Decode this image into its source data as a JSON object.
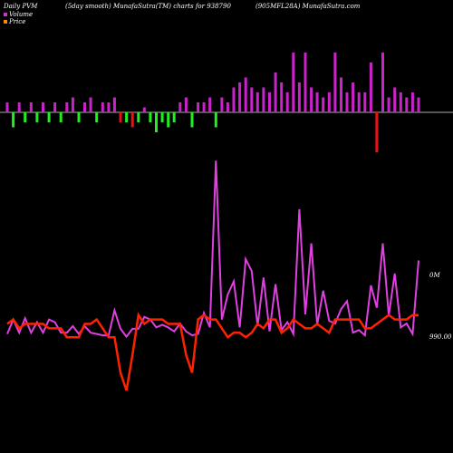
{
  "header": {
    "left": "Daily PVM",
    "middle": "(5day smooth) MunafaSutra(TM) charts for 938790",
    "right": "(905MFL28A) MunafaSutra.com"
  },
  "legend": [
    {
      "label": "Volume",
      "color": "#cc33cc"
    },
    {
      "label": "Price",
      "color": "#ff8800"
    }
  ],
  "labels": {
    "high": "0M",
    "price": "990.00"
  },
  "colors": {
    "background": "#000000",
    "pvm_line": "#e040e0",
    "price_line": "#ff2200",
    "up": "#cc22cc",
    "down_green": "#22ee22",
    "down_red": "#ee1111",
    "baseline": "#aaaaaa"
  },
  "chart_data": {
    "type": "bar",
    "series": [
      {
        "name": "Volume",
        "values": [
          2,
          3,
          2,
          2,
          2,
          2,
          2,
          2,
          2,
          2,
          2,
          3,
          2,
          2,
          3,
          2,
          2,
          2,
          3,
          2,
          2,
          3,
          2,
          1,
          2,
          4,
          2,
          3,
          2,
          2,
          3,
          3,
          2,
          2,
          3,
          3,
          3,
          2,
          5,
          6,
          7,
          5,
          4,
          5,
          4,
          8,
          6,
          4,
          12,
          6,
          12,
          5,
          4,
          3,
          4,
          12,
          7,
          4,
          6,
          4,
          4,
          10,
          8,
          12,
          3,
          5,
          4,
          3,
          4,
          3
        ],
        "colors": [
          "m",
          "g",
          "m",
          "g",
          "m",
          "g",
          "m",
          "g",
          "m",
          "g",
          "m",
          "m",
          "g",
          "m",
          "m",
          "g",
          "m",
          "m",
          "m",
          "r",
          "g",
          "r",
          "g",
          "m",
          "g",
          "g",
          "g",
          "g",
          "g",
          "m",
          "m",
          "g",
          "m",
          "m",
          "m",
          "g",
          "m",
          "m",
          "m",
          "m",
          "m",
          "m",
          "m",
          "m",
          "m",
          "m",
          "m",
          "m",
          "m",
          "m",
          "m",
          "m",
          "m",
          "m",
          "m",
          "m",
          "m",
          "m",
          "m",
          "m",
          "m",
          "m",
          "r",
          "m",
          "m",
          "m",
          "m",
          "m",
          "m",
          "m"
        ]
      },
      {
        "name": "PVM",
        "values": [
          3,
          14,
          4,
          15,
          4,
          12,
          4,
          14,
          12,
          4,
          4,
          9,
          3,
          9,
          4,
          3,
          2,
          2,
          21,
          7,
          1,
          7,
          7,
          16,
          14,
          8,
          10,
          8,
          5,
          11,
          5,
          2,
          3,
          19,
          8,
          135,
          14,
          33,
          43,
          8,
          60,
          51,
          9,
          46,
          5,
          41,
          6,
          12,
          3,
          98,
          18,
          72,
          10,
          36,
          13,
          11,
          22,
          28,
          4,
          6,
          2,
          40,
          23,
          72,
          17,
          49,
          8,
          11,
          3,
          59
        ]
      },
      {
        "name": "Price",
        "values": [
          5,
          6,
          4,
          5,
          5,
          5,
          5,
          4,
          4,
          4,
          2,
          2,
          2,
          5,
          5,
          6,
          4,
          2,
          2,
          -6,
          -10,
          -2,
          7,
          5,
          6,
          6,
          6,
          5,
          5,
          5,
          -2,
          -6,
          6,
          7,
          6,
          6,
          4,
          2,
          3,
          3,
          2,
          3,
          5,
          4,
          6,
          6,
          3,
          4,
          6,
          5,
          4,
          4,
          5,
          4,
          3,
          6,
          6,
          6,
          6,
          6,
          4,
          4,
          5,
          6,
          7,
          6,
          6,
          6,
          7,
          7
        ]
      }
    ],
    "ylabel": "",
    "xlabel": ""
  }
}
